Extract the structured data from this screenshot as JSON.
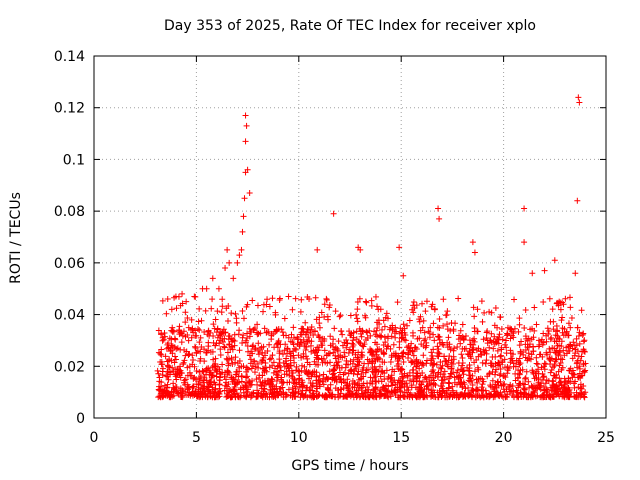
{
  "chart_data": {
    "type": "scatter",
    "title": "Day 353 of 2025, Rate Of TEC Index for receiver xplo",
    "xlabel": "GPS time / hours",
    "ylabel": "ROTI / TECUs",
    "xlim": [
      0,
      25
    ],
    "ylim": [
      0,
      0.14
    ],
    "xticks": [
      0,
      5,
      10,
      15,
      20,
      25
    ],
    "yticks": [
      0,
      0.02,
      0.04,
      0.06,
      0.08,
      0.1,
      0.12,
      0.14
    ],
    "xtick_labels": [
      "0",
      "5",
      "10",
      "15",
      "20",
      "25"
    ],
    "ytick_labels": [
      "0",
      "0.02",
      "0.04",
      "0.06",
      "0.08",
      "0.1",
      "0.12",
      "0.14"
    ],
    "grid": true,
    "marker": "+",
    "color": "#ff0000",
    "data_range_hours": [
      3.1,
      24.0
    ],
    "typical_band": [
      0.008,
      0.035
    ],
    "series": [
      {
        "name": "ROTI",
        "x": [
          3.6,
          3.8,
          4.0,
          4.3,
          4.5,
          4.9,
          5.3,
          5.5,
          5.8,
          6.1,
          6.4,
          6.5,
          6.6,
          6.8,
          7.0,
          7.1,
          7.2,
          7.25,
          7.3,
          7.35,
          7.4,
          7.4,
          7.4,
          7.45,
          7.5,
          7.6,
          9.5,
          10.5,
          10.9,
          11.7,
          12.9,
          13.0,
          14.9,
          15.1,
          16.8,
          16.85,
          18.5,
          18.6,
          21.0,
          21.0,
          21.4,
          22.0,
          22.5,
          23.5,
          23.6,
          23.65,
          23.7
        ],
        "y": [
          0.046,
          0.042,
          0.047,
          0.048,
          0.045,
          0.047,
          0.05,
          0.05,
          0.054,
          0.05,
          0.058,
          0.065,
          0.06,
          0.054,
          0.06,
          0.063,
          0.065,
          0.072,
          0.078,
          0.085,
          0.095,
          0.107,
          0.117,
          0.113,
          0.096,
          0.087,
          0.047,
          0.046,
          0.065,
          0.079,
          0.066,
          0.065,
          0.066,
          0.055,
          0.081,
          0.077,
          0.068,
          0.064,
          0.081,
          0.068,
          0.056,
          0.057,
          0.061,
          0.056,
          0.084,
          0.124,
          0.122
        ]
      }
    ]
  }
}
